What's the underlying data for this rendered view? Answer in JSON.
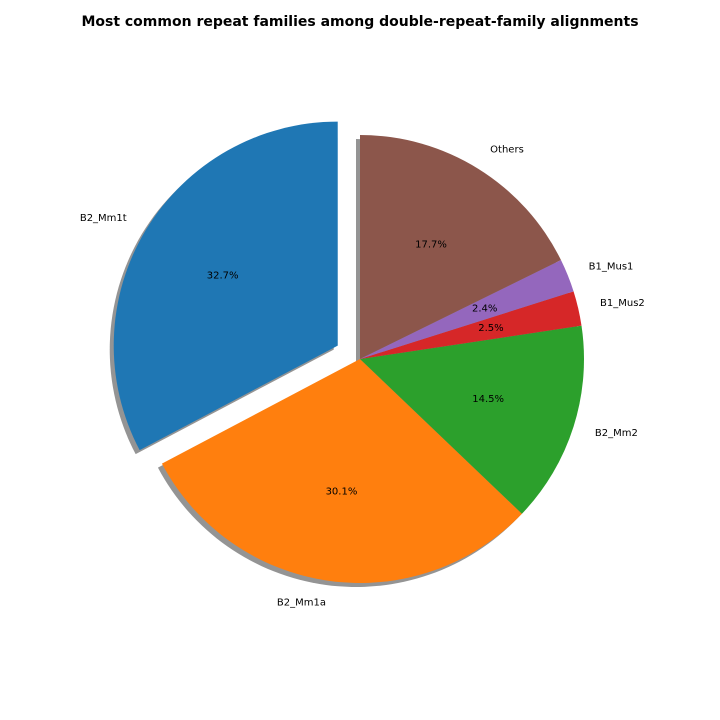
{
  "chart_data": {
    "type": "pie",
    "title": "Most common repeat families among double-repeat-family alignments",
    "slices": [
      {
        "label": "B2_Mm1t",
        "value": 32.7,
        "percent_label": "32.7%",
        "color": "#1f77b4",
        "exploded": true
      },
      {
        "label": "B2_Mm1a",
        "value": 30.1,
        "percent_label": "30.1%",
        "color": "#ff7f0e",
        "exploded": false
      },
      {
        "label": "B2_Mm2",
        "value": 14.5,
        "percent_label": "14.5%",
        "color": "#2ca02c",
        "exploded": false
      },
      {
        "label": "B1_Mus2",
        "value": 2.5,
        "percent_label": "2.5%",
        "color": "#d62728",
        "exploded": false
      },
      {
        "label": "B1_Mus1",
        "value": 2.4,
        "percent_label": "2.4%",
        "color": "#9467bd",
        "exploded": false
      },
      {
        "label": "Others",
        "value": 17.7,
        "percent_label": "17.7%",
        "color": "#8c564b",
        "exploded": false
      }
    ],
    "start_angle_deg": 90,
    "direction": "counterclockwise",
    "shadow": true
  }
}
